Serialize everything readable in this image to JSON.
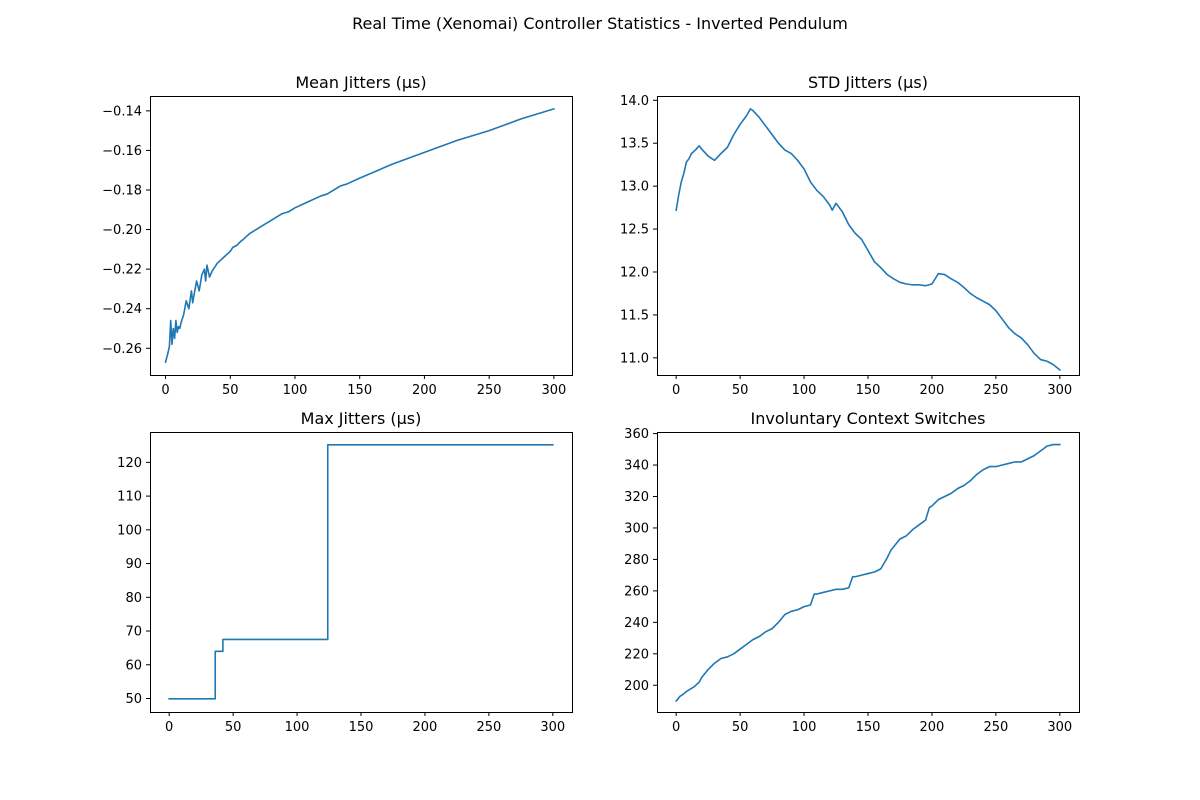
{
  "figure": {
    "suptitle": "Real Time (Xenomai) Controller Statistics - Inverted Pendulum",
    "line_color": "#1f77b4"
  },
  "chart_data": [
    {
      "type": "line",
      "title": "Mean Jitters (µs)",
      "xlabel": "",
      "ylabel": "",
      "xlim": [
        -12,
        314
      ],
      "ylim": [
        -0.2735,
        -0.1325
      ],
      "xticks": [
        0,
        50,
        100,
        150,
        200,
        250,
        300
      ],
      "yticks": [
        -0.26,
        -0.24,
        -0.22,
        -0.2,
        -0.18,
        -0.16,
        -0.14
      ],
      "ytick_labels": [
        "−0.26",
        "−0.24",
        "−0.22",
        "−0.20",
        "−0.18",
        "−0.16",
        "−0.14"
      ],
      "grid": false,
      "x": [
        0,
        2,
        3,
        4,
        5,
        6,
        7,
        8,
        9,
        10,
        11,
        12,
        14,
        16,
        18,
        20,
        21,
        22,
        24,
        26,
        28,
        30,
        31,
        32,
        34,
        36,
        38,
        40,
        45,
        50,
        52,
        55,
        58,
        60,
        65,
        70,
        75,
        80,
        85,
        90,
        95,
        100,
        110,
        120,
        125,
        130,
        135,
        140,
        150,
        175,
        200,
        225,
        250,
        275,
        300
      ],
      "y": [
        -0.267,
        -0.262,
        -0.259,
        -0.246,
        -0.258,
        -0.25,
        -0.255,
        -0.246,
        -0.252,
        -0.249,
        -0.25,
        -0.247,
        -0.243,
        -0.236,
        -0.24,
        -0.231,
        -0.237,
        -0.233,
        -0.226,
        -0.231,
        -0.223,
        -0.22,
        -0.226,
        -0.218,
        -0.224,
        -0.221,
        -0.219,
        -0.217,
        -0.214,
        -0.211,
        -0.209,
        -0.208,
        -0.206,
        -0.205,
        -0.202,
        -0.2,
        -0.198,
        -0.196,
        -0.194,
        -0.192,
        -0.191,
        -0.189,
        -0.186,
        -0.183,
        -0.182,
        -0.18,
        -0.178,
        -0.177,
        -0.174,
        -0.167,
        -0.161,
        -0.155,
        -0.15,
        -0.144,
        -0.139
      ]
    },
    {
      "type": "line",
      "title": "STD Jitters (µs)",
      "xlabel": "",
      "ylabel": "",
      "xlim": [
        -15,
        315
      ],
      "ylim": [
        10.8,
        14.05
      ],
      "xticks": [
        0,
        50,
        100,
        150,
        200,
        250,
        300
      ],
      "yticks": [
        11.0,
        11.5,
        12.0,
        12.5,
        13.0,
        13.5,
        14.0
      ],
      "ytick_labels": [
        "11.0",
        "11.5",
        "12.0",
        "12.5",
        "13.0",
        "13.5",
        "14.0"
      ],
      "grid": false,
      "x": [
        0,
        2,
        4,
        6,
        8,
        10,
        12,
        15,
        18,
        20,
        25,
        30,
        35,
        40,
        45,
        50,
        55,
        58,
        60,
        65,
        70,
        75,
        80,
        85,
        90,
        95,
        100,
        105,
        110,
        115,
        120,
        122,
        125,
        130,
        135,
        140,
        145,
        150,
        155,
        160,
        165,
        170,
        175,
        180,
        185,
        190,
        195,
        200,
        205,
        210,
        215,
        220,
        225,
        230,
        235,
        240,
        245,
        250,
        255,
        260,
        265,
        270,
        275,
        280,
        285,
        290,
        295,
        300
      ],
      "y": [
        12.72,
        12.9,
        13.05,
        13.15,
        13.28,
        13.32,
        13.38,
        13.42,
        13.47,
        13.43,
        13.35,
        13.3,
        13.38,
        13.45,
        13.6,
        13.72,
        13.82,
        13.9,
        13.88,
        13.8,
        13.7,
        13.6,
        13.5,
        13.42,
        13.38,
        13.3,
        13.2,
        13.05,
        12.95,
        12.88,
        12.78,
        12.72,
        12.8,
        12.7,
        12.55,
        12.45,
        12.38,
        12.25,
        12.12,
        12.05,
        11.97,
        11.92,
        11.88,
        11.86,
        11.85,
        11.85,
        11.84,
        11.86,
        11.98,
        11.97,
        11.92,
        11.88,
        11.82,
        11.75,
        11.7,
        11.66,
        11.62,
        11.55,
        11.45,
        11.35,
        11.28,
        11.23,
        11.15,
        11.05,
        10.98,
        10.96,
        10.92,
        10.86
      ]
    },
    {
      "type": "line",
      "title": "Max Jitters (µs)",
      "xlabel": "",
      "ylabel": "",
      "xlim": [
        -15,
        315
      ],
      "ylim": [
        46,
        129
      ],
      "xticks": [
        0,
        50,
        100,
        150,
        200,
        250,
        300
      ],
      "yticks": [
        50,
        60,
        70,
        80,
        90,
        100,
        110,
        120
      ],
      "ytick_labels": [
        "50",
        "60",
        "70",
        "80",
        "90",
        "100",
        "110",
        "120"
      ],
      "grid": false,
      "x": [
        0,
        36,
        36,
        42,
        42,
        124,
        124,
        300
      ],
      "y": [
        49.9,
        49.9,
        64,
        64,
        67.5,
        67.5,
        125.2,
        125.2
      ]
    },
    {
      "type": "line",
      "title": "Involuntary Context Switches",
      "xlabel": "",
      "ylabel": "",
      "xlim": [
        -15,
        315
      ],
      "ylim": [
        183,
        361
      ],
      "xticks": [
        0,
        50,
        100,
        150,
        200,
        250,
        300
      ],
      "yticks": [
        200,
        220,
        240,
        260,
        280,
        300,
        320,
        340,
        360
      ],
      "ytick_labels": [
        "200",
        "220",
        "240",
        "260",
        "280",
        "300",
        "320",
        "340",
        "360"
      ],
      "grid": false,
      "x": [
        0,
        3,
        5,
        8,
        10,
        14,
        18,
        20,
        25,
        30,
        35,
        40,
        45,
        50,
        55,
        60,
        65,
        70,
        75,
        80,
        85,
        90,
        95,
        100,
        105,
        108,
        110,
        115,
        120,
        125,
        130,
        135,
        138,
        140,
        145,
        150,
        155,
        160,
        165,
        168,
        170,
        175,
        180,
        185,
        190,
        195,
        198,
        200,
        205,
        210,
        215,
        220,
        225,
        230,
        235,
        240,
        245,
        250,
        255,
        260,
        265,
        270,
        275,
        280,
        285,
        290,
        295,
        300
      ],
      "y": [
        190,
        193,
        194,
        196,
        197,
        199,
        202,
        205,
        210,
        214,
        217,
        218,
        220,
        223,
        226,
        229,
        231,
        234,
        236,
        240,
        245,
        247,
        248,
        250,
        251,
        258,
        258,
        259,
        260,
        261,
        261,
        262,
        269,
        269,
        270,
        271,
        272,
        274,
        281,
        286,
        288,
        293,
        295,
        299,
        302,
        305,
        313,
        314,
        318,
        320,
        322,
        325,
        327,
        330,
        334,
        337,
        339,
        339,
        340,
        341,
        342,
        342,
        344,
        346,
        349,
        352,
        353,
        353
      ]
    }
  ]
}
